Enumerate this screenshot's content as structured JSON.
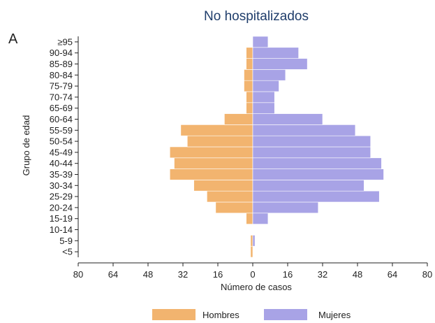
{
  "chart_data": {
    "type": "bar",
    "orientation": "horizontal",
    "layout": "population-pyramid",
    "title": "No hospitalizados",
    "panel_label": "A",
    "xlabel": "Número de casos",
    "ylabel": "Grupo de edad",
    "xlim": [
      -80,
      80
    ],
    "x_ticks": [
      -80,
      -64,
      -48,
      -32,
      -16,
      0,
      16,
      32,
      48,
      64,
      80
    ],
    "x_tick_labels": [
      "80",
      "64",
      "48",
      "32",
      "16",
      "0",
      "16",
      "32",
      "48",
      "64",
      "80"
    ],
    "categories": [
      "<5",
      "5-9",
      "10-14",
      "15-19",
      "20-24",
      "25-29",
      "30-34",
      "35-39",
      "40-44",
      "45-49",
      "50-54",
      "55-59",
      "60-64",
      "65-69",
      "70-74",
      "75-79",
      "80-84",
      "85-89",
      "90-94",
      "≥95"
    ],
    "series": [
      {
        "name": "Hombres",
        "color": "#f2b46f",
        "side": "left",
        "values": [
          1,
          1,
          0,
          3,
          17,
          21,
          27,
          38,
          36,
          38,
          30,
          33,
          13,
          3,
          3,
          4,
          4,
          3,
          3,
          0
        ]
      },
      {
        "name": "Mujeres",
        "color": "#a8a3e6",
        "side": "right",
        "values": [
          0,
          1,
          0,
          7,
          30,
          58,
          51,
          60,
          59,
          54,
          54,
          47,
          32,
          10,
          10,
          12,
          15,
          25,
          21,
          7
        ]
      }
    ],
    "legend_position": "bottom",
    "grid": false
  }
}
